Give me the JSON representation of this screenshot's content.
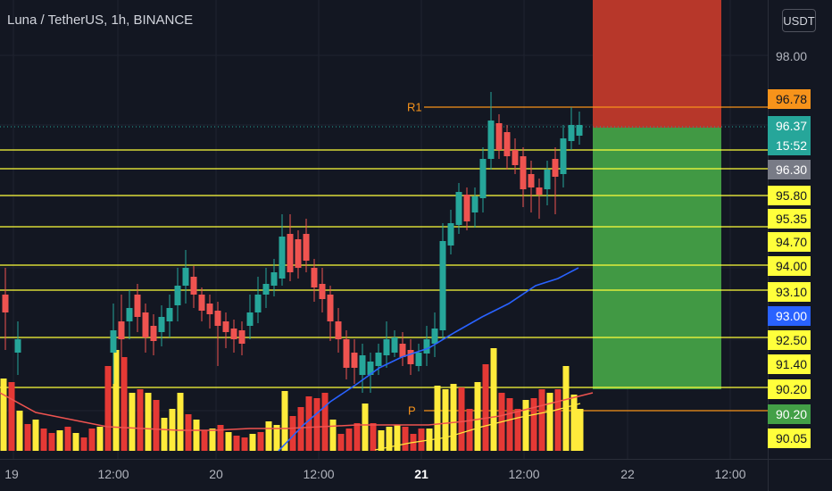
{
  "header": {
    "title": "Luna / TetherUS, 1h, BINANCE"
  },
  "currency_button": {
    "label": "USDT"
  },
  "chart_text": {
    "r1_label": "R1",
    "p_label": "P"
  },
  "price_axis": {
    "plain_label": "98.00",
    "tags": [
      {
        "text": "96.78",
        "bg": "#f7931a",
        "fg": "#131722"
      },
      {
        "text": "96.37",
        "bg": "#26a69a",
        "fg": "#ffffff"
      },
      {
        "text": "15:52",
        "bg": "#26a69a",
        "fg": "#ffffff"
      },
      {
        "text": "96.30",
        "bg": "#787b86",
        "fg": "#ffffff"
      },
      {
        "text": "95.80",
        "bg": "#ffff3b",
        "fg": "#131722"
      },
      {
        "text": "95.35",
        "bg": "#ffff3b",
        "fg": "#131722"
      },
      {
        "text": "94.70",
        "bg": "#ffff3b",
        "fg": "#131722"
      },
      {
        "text": "94.00",
        "bg": "#ffff3b",
        "fg": "#131722"
      },
      {
        "text": "93.10",
        "bg": "#ffff3b",
        "fg": "#131722"
      },
      {
        "text": "93.00",
        "bg": "#2962ff",
        "fg": "#ffffff"
      },
      {
        "text": "92.50",
        "bg": "#ffff3b",
        "fg": "#131722"
      },
      {
        "text": "91.40",
        "bg": "#ffff3b",
        "fg": "#131722"
      },
      {
        "text": "90.20",
        "bg": "#ffff3b",
        "fg": "#131722"
      },
      {
        "text": "90.20",
        "bg": "#43a047",
        "fg": "#ffffff"
      },
      {
        "text": "90.05",
        "bg": "#ffff3b",
        "fg": "#131722"
      }
    ]
  },
  "time_axis": {
    "labels": [
      {
        "text": "19",
        "bold": false
      },
      {
        "text": "12:00",
        "bold": false
      },
      {
        "text": "20",
        "bold": false
      },
      {
        "text": "12:00",
        "bold": false
      },
      {
        "text": "21",
        "bold": true
      },
      {
        "text": "12:00",
        "bold": false
      },
      {
        "text": "22",
        "bold": false
      },
      {
        "text": "12:00",
        "bold": false
      }
    ]
  },
  "colors": {
    "background": "#131722",
    "up": "#26a69a",
    "down": "#ef5350",
    "level_line": "#ffff3b",
    "pivot_line": "#f7931a",
    "ma_line": "#2962ff",
    "vol_up": "#ffeb3b",
    "vol_down": "#e53935",
    "vol_ma": "#ef5350",
    "stop_zone": "#c0392b",
    "target_zone": "#43a047"
  }
}
